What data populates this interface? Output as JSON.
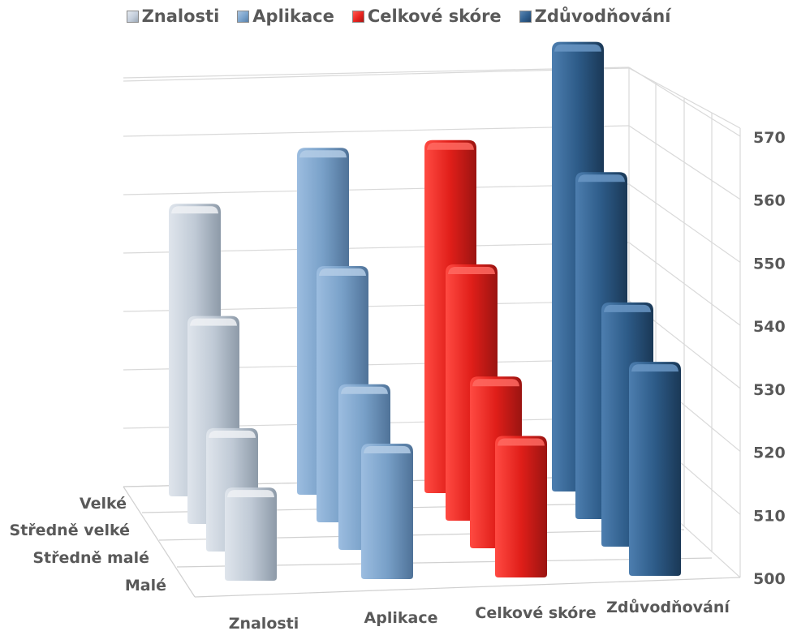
{
  "chart_data": {
    "type": "bar",
    "subtype": "3d-column",
    "title": "",
    "categories": [
      "Znalosti",
      "Aplikace",
      "Celkové skóre",
      "Zdůvodňování"
    ],
    "depth_labels": [
      "Velké",
      "Středně velké",
      "Středně malé",
      "Malé"
    ],
    "series": [
      {
        "name": "Velké",
        "values": [
          546,
          555,
          556,
          572
        ]
      },
      {
        "name": "Středně velké",
        "values": [
          532,
          540,
          540,
          555
        ]
      },
      {
        "name": "Středně malé",
        "values": [
          518,
          525,
          526,
          538
        ]
      },
      {
        "name": "Malé",
        "values": [
          513,
          520,
          521,
          533
        ]
      }
    ],
    "legend": {
      "position": "top",
      "items": [
        "Znalosti",
        "Aplikace",
        "Celkové skóre",
        "Zdůvodňování"
      ]
    },
    "ylim": [
      500,
      570
    ],
    "yticks": [
      500,
      510,
      520,
      530,
      540,
      550,
      560,
      570
    ],
    "grid": true,
    "colors": {
      "Znalosti": {
        "front": "#c4cedb",
        "side": "#9ba8b6",
        "top": "#e4eaf1"
      },
      "Aplikace": {
        "front": "#7aa3cc",
        "side": "#587fa8",
        "top": "#a8c4e0"
      },
      "Celkové skóre": {
        "front": "#e8231e",
        "side": "#a81613",
        "top": "#ff5a52"
      },
      "Zdůvodňování": {
        "front": "#2f5f8f",
        "side": "#1f4166",
        "top": "#5a86b3"
      }
    }
  }
}
